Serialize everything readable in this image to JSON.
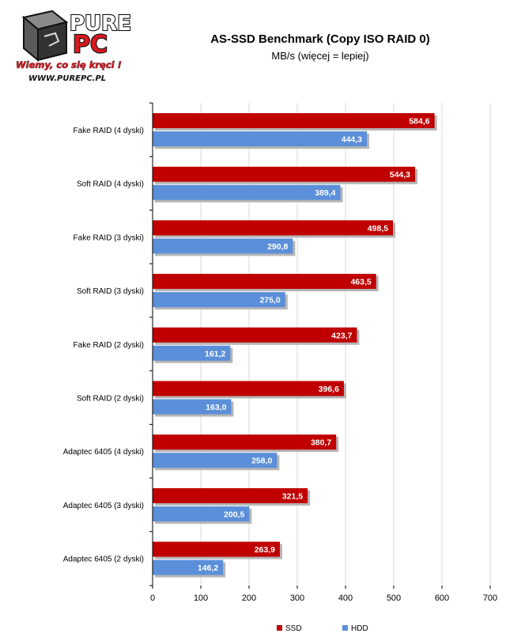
{
  "logo": {
    "brand_top": "PURE",
    "brand_bottom": "PC",
    "slogan": "Wiemy, co się kręci !",
    "url": "WWW.PUREPC.PL"
  },
  "colors": {
    "ssd": "#c00000",
    "hdd": "#5b8fd9",
    "axis": "#000000",
    "grid": "#d9d9d9"
  },
  "chart_data": {
    "type": "bar",
    "orientation": "horizontal",
    "title": "AS-SSD Benchmark (Copy ISO RAID 0)",
    "subtitle": "MB/s (więcej = lepiej)",
    "categories": [
      "Fake RAID (4 dyski)",
      "Soft RAID (4 dyski)",
      "Fake RAID (3 dyski)",
      "Soft RAID (3 dyski)",
      "Fake RAID (2 dyski)",
      "Soft RAID (2 dyski)",
      "Adaptec 6405 (4 dyski)",
      "Adaptec 6405 (3 dyski)",
      "Adaptec 6405 (2 dyski)"
    ],
    "series": [
      {
        "name": "SSD",
        "values": [
          584.6,
          544.3,
          498.5,
          463.5,
          423.7,
          396.6,
          380.7,
          321.5,
          263.9
        ],
        "labels": [
          "584,6",
          "544,3",
          "498,5",
          "463,5",
          "423,7",
          "396,6",
          "380,7",
          "321,5",
          "263,9"
        ]
      },
      {
        "name": "HDD",
        "values": [
          444.3,
          389.4,
          290.8,
          275.0,
          161.2,
          163.0,
          258.0,
          200.5,
          146.2
        ],
        "labels": [
          "444,3",
          "389,4",
          "290,8",
          "275,0",
          "161,2",
          "163,0",
          "258,0",
          "200,5",
          "146,2"
        ]
      }
    ],
    "xlim": [
      0,
      700
    ],
    "xticks": [
      0,
      100,
      200,
      300,
      400,
      500,
      600,
      700
    ],
    "grid": true,
    "legend": "bottom-right"
  }
}
